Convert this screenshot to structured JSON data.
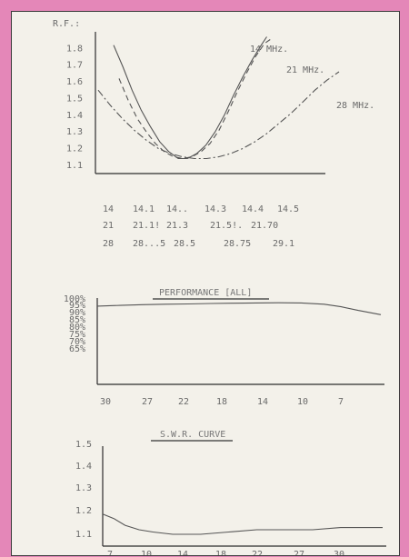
{
  "chart_data": [
    {
      "type": "line",
      "title": "",
      "ylabel": "R.F.:",
      "y_ticks": [
        "1.1",
        "1.2",
        "1.3",
        "1.4",
        "1.5",
        "1.6",
        "1.7",
        "1.8"
      ],
      "ylim": [
        1.05,
        1.9
      ],
      "x_rows": [
        [
          "14",
          "14.1",
          "14..",
          "14.3",
          "14.4",
          "14.5"
        ],
        [
          "21",
          "21.1!",
          "21.3",
          "21.5!.",
          "21.70"
        ],
        [
          "28",
          "28...5",
          "28.5",
          "28.75",
          "29.1"
        ]
      ],
      "series": [
        {
          "name": "14 MHz.",
          "dash": "solid",
          "x": [
            0,
            0.05,
            0.1,
            0.15,
            0.2,
            0.25,
            0.3,
            0.35,
            0.4,
            0.45,
            0.5,
            0.55,
            0.6,
            0.65,
            0.7,
            0.75,
            0.8,
            0.83
          ],
          "y": [
            1.82,
            1.69,
            1.55,
            1.43,
            1.33,
            1.24,
            1.18,
            1.14,
            1.14,
            1.17,
            1.22,
            1.3,
            1.4,
            1.52,
            1.63,
            1.73,
            1.82,
            1.87
          ]
        },
        {
          "name": "21 MHz.",
          "dash": "dashed",
          "x": [
            0,
            0.05,
            0.1,
            0.15,
            0.2,
            0.25,
            0.3,
            0.35,
            0.4,
            0.45,
            0.5,
            0.55,
            0.6,
            0.65,
            0.7,
            0.75,
            0.8,
            0.84
          ],
          "y": [
            1.62,
            1.49,
            1.38,
            1.3,
            1.23,
            1.18,
            1.15,
            1.14,
            1.15,
            1.18,
            1.23,
            1.31,
            1.42,
            1.54,
            1.65,
            1.75,
            1.83,
            1.86
          ]
        },
        {
          "name": "28 MHz.",
          "dash": "dashdot",
          "x": [
            0,
            0.05,
            0.1,
            0.15,
            0.2,
            0.25,
            0.3,
            0.35,
            0.4,
            0.45,
            0.5,
            0.55,
            0.6,
            0.65,
            0.7,
            0.75,
            0.8,
            0.85,
            0.9,
            0.95,
            1.0
          ],
          "y": [
            1.55,
            1.46,
            1.38,
            1.31,
            1.25,
            1.2,
            1.17,
            1.15,
            1.14,
            1.14,
            1.15,
            1.17,
            1.2,
            1.24,
            1.29,
            1.35,
            1.41,
            1.48,
            1.55,
            1.61,
            1.66
          ]
        }
      ]
    },
    {
      "type": "line",
      "title": "PERFORMANCE [ALL]",
      "y_ticks": [
        "100%",
        "95%",
        "90%",
        "85%",
        "80%",
        "75%",
        "70%",
        "65%"
      ],
      "ylim": [
        62,
        100
      ],
      "x_ticks": [
        "30",
        "27",
        "22",
        "18",
        "14",
        "10",
        "7"
      ],
      "series": [
        {
          "name": "",
          "dash": "solid",
          "x": [
            0,
            0.08,
            0.16,
            0.24,
            0.32,
            0.4,
            0.48,
            0.56,
            0.64,
            0.72,
            0.8,
            0.86,
            0.92,
            1.0
          ],
          "y": [
            95,
            95.5,
            96,
            96.3,
            96.5,
            96.8,
            97,
            97.2,
            97.3,
            97.2,
            96.3,
            94.5,
            92,
            89
          ]
        }
      ]
    },
    {
      "type": "line",
      "title": "S.W.R. CURVE",
      "y_ticks": [
        "1.1",
        "1.2",
        "1.3",
        "1.4",
        "1.5"
      ],
      "ylim": [
        1.03,
        1.58
      ],
      "x_ticks": [
        "7",
        "10",
        "14",
        "18",
        "22",
        "27",
        "30"
      ],
      "series": [
        {
          "name": "",
          "dash": "solid",
          "x": [
            0,
            0.04,
            0.08,
            0.13,
            0.18,
            0.25,
            0.35,
            0.45,
            0.55,
            0.65,
            0.75,
            0.85,
            0.95,
            1.0
          ],
          "y": [
            1.19,
            1.17,
            1.14,
            1.12,
            1.11,
            1.1,
            1.1,
            1.11,
            1.12,
            1.12,
            1.12,
            1.13,
            1.13,
            1.13
          ]
        }
      ]
    }
  ]
}
